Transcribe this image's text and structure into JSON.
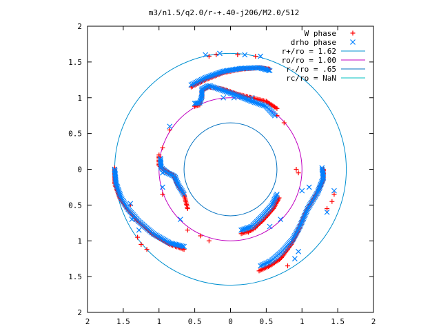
{
  "chart_data": {
    "type": "scatter",
    "title": "m3/n1.5/q2.0/r-+.40-j206/M2.0/512",
    "xlabel": "",
    "ylabel": "",
    "xlim": [
      -2,
      2
    ],
    "ylim": [
      -2,
      2
    ],
    "x_tick_labels": [
      "2",
      "1.5",
      "1",
      "0.5",
      "0",
      "0.5",
      "1",
      "1.5",
      "2"
    ],
    "y_tick_labels": [
      "2",
      "1.5",
      "1",
      "0.5",
      "0",
      "0.5",
      "1",
      "1.5",
      "2"
    ],
    "grid": false,
    "legend_position": "top-right",
    "series": [
      {
        "name": "W phase",
        "marker": "plus",
        "color": "#ff0000",
        "arms": [
          [
            [
              -0.55,
              1.15
            ],
            [
              -0.35,
              1.25
            ],
            [
              -0.1,
              1.35
            ],
            [
              0.15,
              1.4
            ],
            [
              0.4,
              1.42
            ],
            [
              0.55,
              1.4
            ]
          ],
          [
            [
              -0.5,
              0.88
            ],
            [
              -0.43,
              0.9
            ],
            [
              -0.4,
              1.0
            ],
            [
              -0.4,
              1.1
            ],
            [
              -0.3,
              1.15
            ],
            [
              -0.1,
              1.12
            ],
            [
              0.1,
              1.05
            ],
            [
              0.3,
              1.0
            ],
            [
              0.5,
              0.95
            ],
            [
              0.65,
              0.85
            ]
          ],
          [
            [
              -1.62,
              0.02
            ],
            [
              -1.62,
              -0.2
            ],
            [
              -1.55,
              -0.4
            ],
            [
              -1.45,
              -0.55
            ],
            [
              -1.3,
              -0.72
            ],
            [
              -1.1,
              -0.9
            ],
            [
              -0.85,
              -1.05
            ],
            [
              -0.65,
              -1.12
            ]
          ],
          [
            [
              -1.0,
              0.2
            ],
            [
              -1.0,
              0.05
            ],
            [
              -0.9,
              -0.03
            ],
            [
              -0.8,
              -0.08
            ],
            [
              -0.75,
              -0.2
            ],
            [
              -0.65,
              -0.35
            ],
            [
              -0.6,
              -0.55
            ]
          ],
          [
            [
              0.4,
              -1.42
            ],
            [
              0.55,
              -1.35
            ],
            [
              0.7,
              -1.25
            ],
            [
              0.85,
              -1.05
            ],
            [
              0.95,
              -0.85
            ],
            [
              1.05,
              -0.6
            ],
            [
              1.2,
              -0.35
            ],
            [
              1.3,
              -0.15
            ],
            [
              1.3,
              0.0
            ]
          ],
          [
            [
              0.15,
              -0.9
            ],
            [
              0.3,
              -0.85
            ],
            [
              0.45,
              -0.72
            ],
            [
              0.6,
              -0.55
            ],
            [
              0.68,
              -0.4
            ]
          ]
        ],
        "scattered_points": [
          [
            -0.3,
            1.58
          ],
          [
            -0.2,
            1.6
          ],
          [
            0.1,
            1.6
          ],
          [
            0.35,
            1.58
          ],
          [
            -0.85,
            0.55
          ],
          [
            -0.95,
            0.3
          ],
          [
            0.65,
            0.75
          ],
          [
            0.75,
            0.65
          ],
          [
            -0.95,
            -0.35
          ],
          [
            -0.6,
            -0.85
          ],
          [
            -0.42,
            -0.93
          ],
          [
            -0.3,
            -1.0
          ],
          [
            -1.25,
            -1.05
          ],
          [
            -1.17,
            -1.12
          ],
          [
            -1.3,
            -0.95
          ],
          [
            1.35,
            -0.55
          ],
          [
            1.42,
            -0.45
          ],
          [
            1.45,
            -0.35
          ],
          [
            0.95,
            -0.05
          ],
          [
            0.92,
            0.0
          ],
          [
            0.25,
            -0.88
          ],
          [
            0.35,
            -0.82
          ],
          [
            0.8,
            -1.35
          ],
          [
            -1.4,
            -0.5
          ],
          [
            -1.32,
            -0.72
          ]
        ]
      },
      {
        "name": "drho phase",
        "marker": "x",
        "color": "#0080ff",
        "arms": [
          [
            [
              -0.55,
              1.18
            ],
            [
              -0.35,
              1.28
            ],
            [
              -0.1,
              1.37
            ],
            [
              0.15,
              1.41
            ],
            [
              0.4,
              1.42
            ],
            [
              0.55,
              1.38
            ]
          ],
          [
            [
              -0.5,
              0.92
            ],
            [
              -0.43,
              0.93
            ],
            [
              -0.4,
              1.02
            ],
            [
              -0.4,
              1.12
            ],
            [
              -0.3,
              1.17
            ],
            [
              -0.1,
              1.1
            ],
            [
              0.1,
              1.03
            ],
            [
              0.3,
              0.95
            ],
            [
              0.5,
              0.88
            ],
            [
              0.62,
              0.75
            ]
          ],
          [
            [
              -1.62,
              0.0
            ],
            [
              -1.6,
              -0.2
            ],
            [
              -1.53,
              -0.4
            ],
            [
              -1.43,
              -0.56
            ],
            [
              -1.28,
              -0.73
            ],
            [
              -1.08,
              -0.9
            ],
            [
              -0.85,
              -1.03
            ],
            [
              -0.65,
              -1.08
            ]
          ],
          [
            [
              -0.98,
              0.15
            ],
            [
              -0.97,
              0.02
            ],
            [
              -0.88,
              -0.05
            ],
            [
              -0.78,
              -0.1
            ],
            [
              -0.73,
              -0.22
            ],
            [
              -0.65,
              -0.35
            ]
          ],
          [
            [
              0.42,
              -1.35
            ],
            [
              0.57,
              -1.28
            ],
            [
              0.72,
              -1.15
            ],
            [
              0.87,
              -0.98
            ],
            [
              0.97,
              -0.8
            ],
            [
              1.08,
              -0.55
            ],
            [
              1.22,
              -0.32
            ],
            [
              1.3,
              -0.12
            ],
            [
              1.28,
              0.02
            ]
          ],
          [
            [
              0.15,
              -0.85
            ],
            [
              0.3,
              -0.8
            ],
            [
              0.45,
              -0.65
            ],
            [
              0.58,
              -0.5
            ],
            [
              0.65,
              -0.35
            ]
          ]
        ],
        "scattered_points": [
          [
            -0.35,
            1.6
          ],
          [
            -0.15,
            1.62
          ],
          [
            0.2,
            1.6
          ],
          [
            0.42,
            1.58
          ],
          [
            -0.1,
            1.0
          ],
          [
            0.05,
            1.0
          ],
          [
            0.3,
            1.0
          ],
          [
            -0.85,
            0.6
          ],
          [
            -0.95,
            -0.05
          ],
          [
            -0.95,
            -0.25
          ],
          [
            -0.7,
            -0.7
          ],
          [
            -1.38,
            -0.7
          ],
          [
            -1.28,
            -0.85
          ],
          [
            -1.4,
            -0.48
          ],
          [
            1.1,
            -0.25
          ],
          [
            1.35,
            -0.6
          ],
          [
            1.45,
            -0.3
          ],
          [
            1.0,
            -0.3
          ],
          [
            0.7,
            -0.7
          ],
          [
            0.55,
            -0.8
          ],
          [
            0.9,
            -1.25
          ],
          [
            0.95,
            -1.15
          ]
        ]
      }
    ],
    "circles": [
      {
        "name": "r+/ro = 1.62",
        "radius": 1.62,
        "color": "#0090d0"
      },
      {
        "name": "ro/ro = 1.00",
        "radius": 1.0,
        "color": "#c000c0"
      },
      {
        "name": "r-/ro = .65",
        "radius": 0.65,
        "color": "#0070c0"
      },
      {
        "name": "rc/ro = NaN",
        "radius": null,
        "color": "#00c0c0"
      }
    ]
  }
}
